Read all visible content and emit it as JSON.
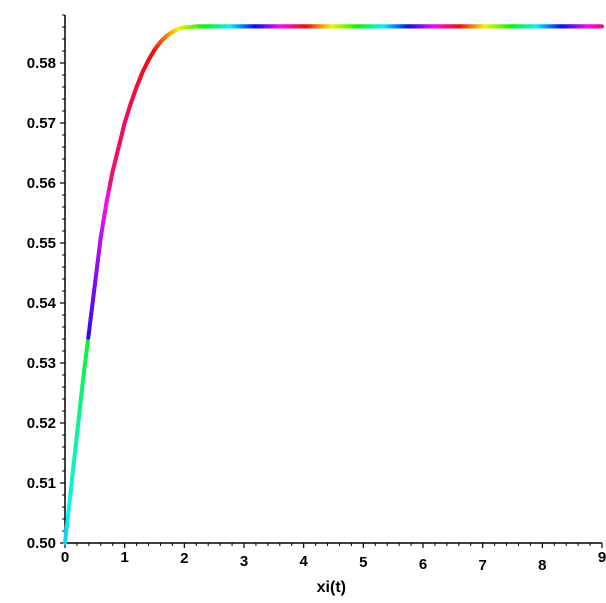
{
  "chart_data": {
    "type": "line",
    "title": "",
    "xlabel": "xi(t)",
    "ylabel": "",
    "xlim": [
      0,
      9
    ],
    "ylim": [
      0.5,
      0.588
    ],
    "grid": false,
    "x_ticks": [
      {
        "value": 0,
        "label": "0"
      },
      {
        "value": 1,
        "label": "1"
      },
      {
        "value": 2,
        "label": "2"
      },
      {
        "value": 3,
        "label": "3"
      },
      {
        "value": 4,
        "label": "4"
      },
      {
        "value": 5,
        "label": "5"
      },
      {
        "value": 6,
        "label": "6"
      },
      {
        "value": 7,
        "label": "7"
      },
      {
        "value": 8,
        "label": "8"
      },
      {
        "value": 9,
        "label": "9"
      }
    ],
    "y_ticks": [
      {
        "value": 0.5,
        "label": "0.50"
      },
      {
        "value": 0.51,
        "label": "0.51"
      },
      {
        "value": 0.52,
        "label": "0.52"
      },
      {
        "value": 0.53,
        "label": "0.53"
      },
      {
        "value": 0.54,
        "label": "0.54"
      },
      {
        "value": 0.55,
        "label": "0.55"
      },
      {
        "value": 0.56,
        "label": "0.56"
      },
      {
        "value": 0.57,
        "label": "0.57"
      },
      {
        "value": 0.58,
        "label": "0.58"
      }
    ],
    "line_color": "rainbow gradient (hue cycles along the curve)",
    "series": [
      {
        "x": [
          0,
          0.1,
          0.2,
          0.3,
          0.4,
          0.5,
          0.6,
          0.7,
          0.8,
          0.9,
          1.0,
          1.1,
          1.2,
          1.3,
          1.4,
          1.5,
          1.6,
          1.7,
          1.8,
          1.9,
          2.0,
          2.1,
          2.2,
          2.3,
          2.5,
          3,
          4,
          5,
          6,
          7,
          8,
          9
        ],
        "y": [
          0.5,
          0.509,
          0.518,
          0.527,
          0.535,
          0.543,
          0.551,
          0.557,
          0.562,
          0.566,
          0.57,
          0.5732,
          0.576,
          0.5785,
          0.5805,
          0.5822,
          0.5835,
          0.5845,
          0.5852,
          0.5857,
          0.5859,
          0.586,
          0.5861,
          0.5861,
          0.5861,
          0.5861,
          0.5861,
          0.5861,
          0.5861,
          0.5861,
          0.5861,
          0.5861
        ]
      }
    ]
  }
}
